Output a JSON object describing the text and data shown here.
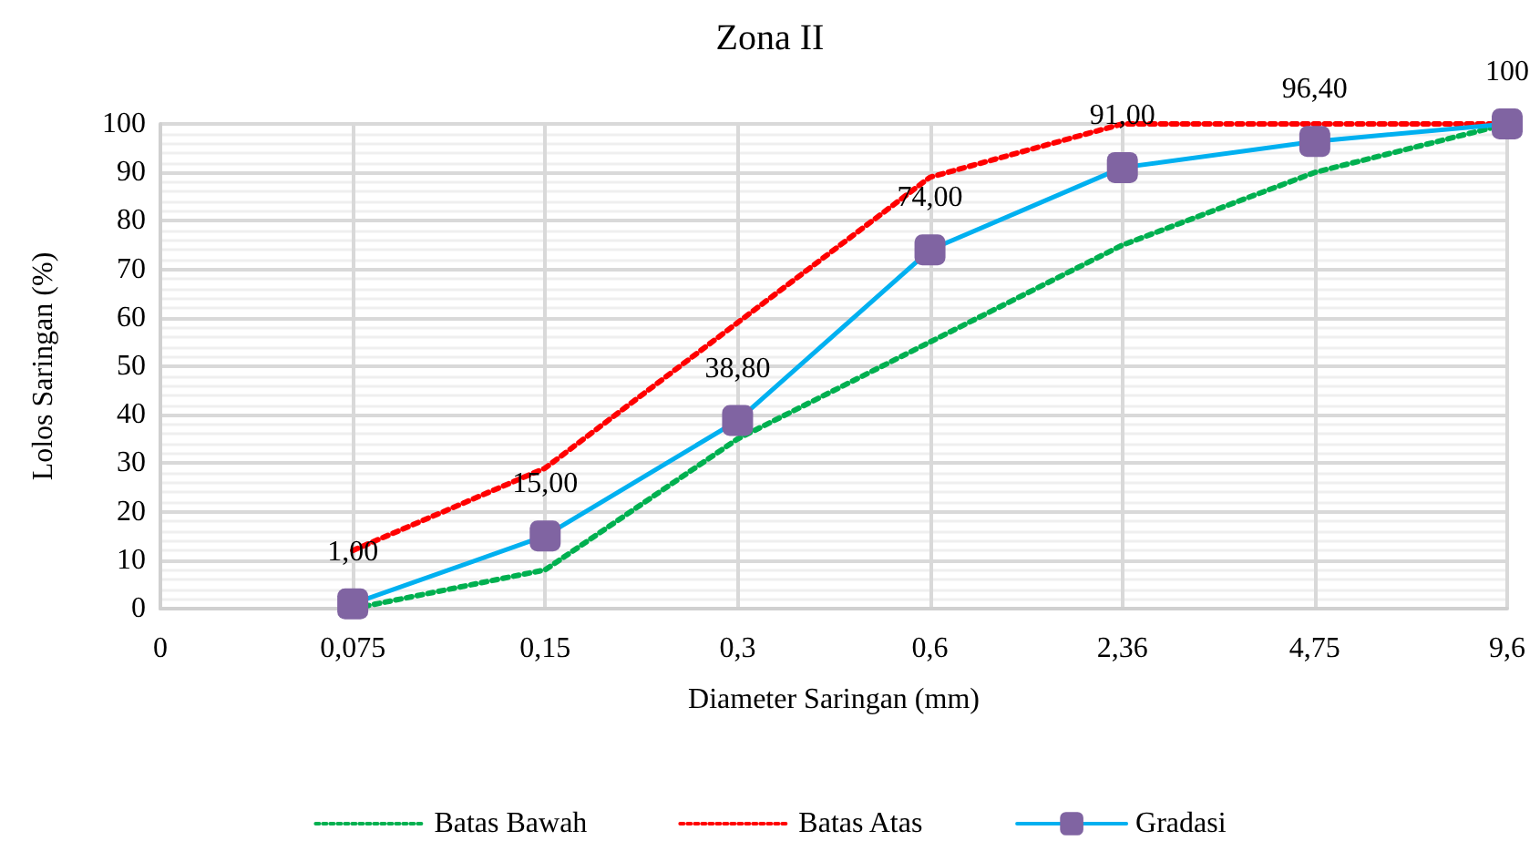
{
  "chart_data": {
    "type": "line",
    "title": "Zona II",
    "xlabel": "Diameter Saringan (mm)",
    "ylabel": "Lolos Saringan (%)",
    "categories": [
      "0",
      "0,075",
      "0,15",
      "0,3",
      "0,6",
      "2,36",
      "4,75",
      "9,6"
    ],
    "series": [
      {
        "name": "Batas Bawah",
        "color": "#00b050",
        "line_style": "dotted",
        "marker": "none",
        "values": [
          null,
          0,
          8,
          35,
          55,
          75,
          90,
          100
        ]
      },
      {
        "name": "Batas Atas",
        "color": "#ff0000",
        "line_style": "dotted",
        "marker": "none",
        "values": [
          null,
          12,
          29,
          59,
          89,
          100,
          100,
          100
        ]
      },
      {
        "name": "Gradasi",
        "color": "#00b0f0",
        "colors": [
          null,
          "#8064a2",
          "#8064a2",
          "#8064a2",
          "#8064a2",
          "#8064a2",
          "#8064a2",
          "#8064a2"
        ],
        "line_style": "solid",
        "marker": "square",
        "values": [
          null,
          1,
          15,
          38.8,
          74,
          91,
          96.4,
          100
        ],
        "value_labels": [
          null,
          "1,00",
          "15,00",
          "38,80",
          "74,00",
          "91,00",
          "96,40",
          "100"
        ]
      }
    ],
    "ylim": [
      0,
      100
    ],
    "yticks": [
      0,
      10,
      20,
      30,
      40,
      50,
      60,
      70,
      80,
      90,
      100
    ],
    "grid": true,
    "legend": "bottom"
  }
}
